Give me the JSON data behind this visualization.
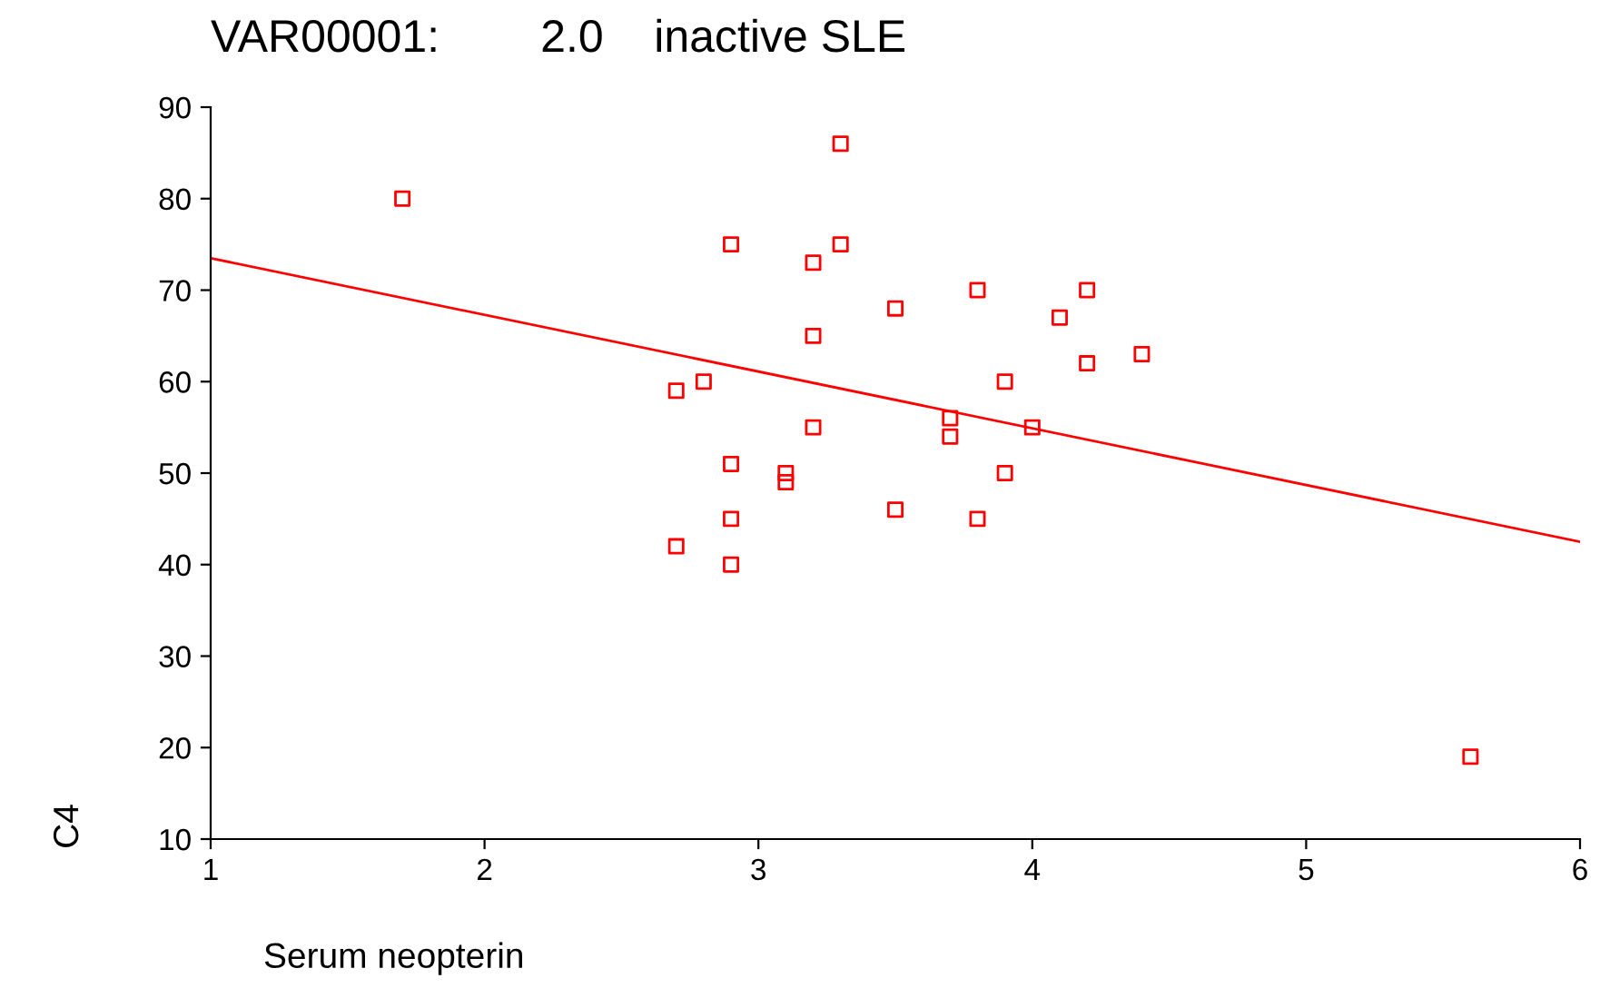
{
  "chart_data": {
    "type": "scatter",
    "title": "VAR00001:        2.0    inactive SLE",
    "xlabel": "Serum neopterin",
    "ylabel": "C4",
    "grid": false,
    "legend": false,
    "xlim": [
      1,
      6
    ],
    "ylim": [
      10,
      90
    ],
    "xticks": [
      1,
      2,
      3,
      4,
      5,
      6
    ],
    "yticks": [
      10,
      20,
      30,
      40,
      50,
      60,
      70,
      80,
      90
    ],
    "series": [
      {
        "marker": "square",
        "color": "#ff0000",
        "x": [
          1.7,
          3.3,
          2.9,
          3.3,
          3.2,
          3.8,
          4.2,
          4.1,
          3.5,
          3.2,
          4.4,
          4.2,
          2.8,
          2.7,
          3.9,
          3.7,
          3.7,
          4.0,
          3.2,
          2.9,
          3.1,
          3.1,
          3.9,
          3.5,
          3.8,
          2.9,
          2.7,
          2.9,
          5.6
        ],
        "values": [
          80,
          86,
          75,
          75,
          73,
          70,
          70,
          67,
          68,
          65,
          63,
          62,
          60,
          59,
          60,
          56,
          54,
          55,
          55,
          51,
          50,
          49,
          50,
          46,
          45,
          45,
          42,
          40,
          19
        ]
      },
      {
        "type": "line",
        "color": "#ff0000",
        "x": [
          1,
          6
        ],
        "values": [
          73.5,
          42.5
        ]
      }
    ]
  }
}
